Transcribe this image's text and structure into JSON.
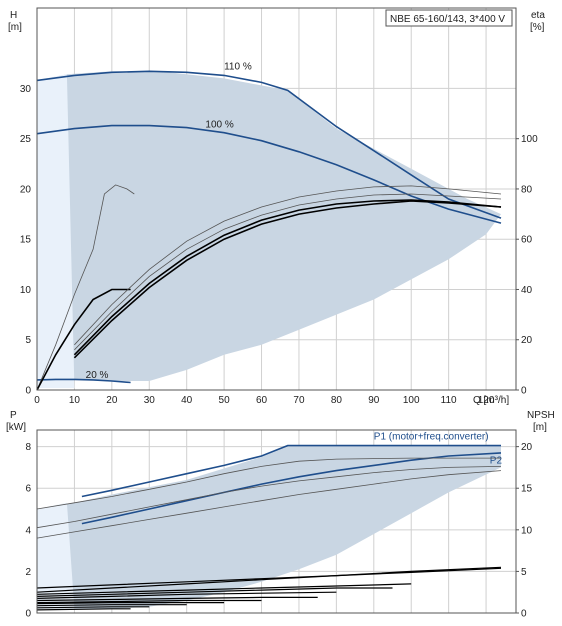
{
  "chart_data": [
    {
      "type": "line",
      "title": "NBE 65-160/143, 3*400 V",
      "xlabel": "Q [m³/h]",
      "ylabel_left_unit": "H",
      "ylabel_left_unit2": "[m]",
      "ylabel_right_unit": "eta",
      "ylabel_right_unit2": "[%]",
      "xlim": [
        0,
        128
      ],
      "ylim_left": [
        0,
        38
      ],
      "ylim_right": [
        0,
        152
      ],
      "x_ticks": [
        0,
        10,
        20,
        30,
        40,
        50,
        60,
        70,
        80,
        90,
        100,
        110,
        120
      ],
      "y_ticks_left": [
        0,
        5,
        10,
        15,
        20,
        25,
        30
      ],
      "y_ticks_right": [
        0,
        20,
        40,
        60,
        80,
        100
      ],
      "grid": true,
      "operating_area": [
        [
          0,
          30.8
        ],
        [
          8,
          31.4
        ],
        [
          20,
          31.7
        ],
        [
          35,
          31.6
        ],
        [
          50,
          31.0
        ],
        [
          67,
          29.8
        ],
        [
          80,
          26.0
        ],
        [
          100,
          22.0
        ],
        [
          115,
          19.0
        ],
        [
          124,
          17.5
        ],
        [
          120,
          15.5
        ],
        [
          110,
          13.0
        ],
        [
          100,
          11.0
        ],
        [
          90,
          9.0
        ],
        [
          80,
          7.5
        ],
        [
          70,
          6.0
        ],
        [
          60,
          4.5
        ],
        [
          50,
          3.5
        ],
        [
          40,
          2.0
        ],
        [
          30,
          0.9
        ],
        [
          20,
          0.9
        ],
        [
          10,
          1.0
        ],
        [
          0,
          0.3
        ]
      ],
      "series": [
        {
          "name": "110 %",
          "label_at": [
            50,
            31.9
          ],
          "values": [
            [
              0,
              30.8
            ],
            [
              10,
              31.3
            ],
            [
              20,
              31.6
            ],
            [
              30,
              31.7
            ],
            [
              40,
              31.6
            ],
            [
              50,
              31.3
            ],
            [
              60,
              30.6
            ],
            [
              67,
              29.8
            ],
            [
              80,
              26.2
            ],
            [
              90,
              23.8
            ],
            [
              100,
              21.4
            ],
            [
              110,
              19.0
            ],
            [
              124,
              17.1
            ]
          ]
        },
        {
          "name": "100 %",
          "label_at": [
            45,
            26.1
          ],
          "values": [
            [
              0,
              25.5
            ],
            [
              10,
              26.0
            ],
            [
              20,
              26.3
            ],
            [
              30,
              26.3
            ],
            [
              40,
              26.1
            ],
            [
              50,
              25.6
            ],
            [
              60,
              24.8
            ],
            [
              70,
              23.7
            ],
            [
              80,
              22.4
            ],
            [
              90,
              20.9
            ],
            [
              100,
              19.3
            ],
            [
              110,
              18.0
            ],
            [
              124,
              16.6
            ]
          ]
        },
        {
          "name": "20 %",
          "label_at": [
            13,
            1.2
          ],
          "values": [
            [
              0,
              1.0
            ],
            [
              5,
              1.05
            ],
            [
              10,
              1.05
            ],
            [
              15,
              1.0
            ],
            [
              20,
              0.9
            ],
            [
              25,
              0.75
            ]
          ]
        },
        {
          "name": "",
          "values": [
            [
              0,
              0
            ],
            [
              5,
              4.5
            ],
            [
              10,
              9.5
            ],
            [
              15,
              14.0
            ],
            [
              18,
              19.5
            ],
            [
              21,
              20.4
            ],
            [
              24,
              20.0
            ],
            [
              26,
              19.5
            ]
          ]
        },
        {
          "name": "",
          "values": [
            [
              0,
              0
            ],
            [
              5,
              3.5
            ],
            [
              10,
              6.5
            ],
            [
              15,
              9.0
            ],
            [
              20,
              10.0
            ],
            [
              25,
              10.0
            ]
          ]
        },
        {
          "name": "",
          "values": [
            [
              10,
              4.5
            ],
            [
              20,
              8.5
            ],
            [
              30,
              12.0
            ],
            [
              40,
              14.8
            ],
            [
              50,
              16.8
            ],
            [
              60,
              18.2
            ],
            [
              70,
              19.2
            ],
            [
              80,
              19.8
            ],
            [
              90,
              20.2
            ],
            [
              100,
              20.3
            ],
            [
              110,
              20.0
            ],
            [
              124,
              19.5
            ]
          ]
        },
        {
          "name": "",
          "values": [
            [
              10,
              4.0
            ],
            [
              20,
              7.8
            ],
            [
              30,
              11.3
            ],
            [
              40,
              14.0
            ],
            [
              50,
              16.0
            ],
            [
              60,
              17.4
            ],
            [
              70,
              18.4
            ],
            [
              80,
              19.0
            ],
            [
              90,
              19.4
            ],
            [
              100,
              19.5
            ],
            [
              110,
              19.3
            ],
            [
              124,
              19.0
            ]
          ]
        },
        {
          "name": "",
          "values": [
            [
              10,
              3.5
            ],
            [
              20,
              7.3
            ],
            [
              30,
              10.6
            ],
            [
              40,
              13.3
            ],
            [
              50,
              15.4
            ],
            [
              60,
              16.9
            ],
            [
              70,
              17.9
            ],
            [
              80,
              18.5
            ],
            [
              90,
              18.8
            ],
            [
              100,
              18.9
            ],
            [
              110,
              18.7
            ],
            [
              124,
              18.2
            ]
          ]
        },
        {
          "name": "",
          "values": [
            [
              10,
              3.2
            ],
            [
              20,
              6.9
            ],
            [
              30,
              10.2
            ],
            [
              40,
              12.9
            ],
            [
              50,
              15.0
            ],
            [
              60,
              16.5
            ],
            [
              70,
              17.5
            ],
            [
              80,
              18.1
            ],
            [
              90,
              18.5
            ],
            [
              100,
              18.8
            ],
            [
              110,
              18.6
            ],
            [
              124,
              18.2
            ]
          ]
        }
      ]
    },
    {
      "type": "line",
      "xlabel": "",
      "ylabel_left_unit": "P",
      "ylabel_left_unit2": "[kW]",
      "ylabel_right_unit": "NPSH",
      "ylabel_right_unit2": "[m]",
      "xlim": [
        0,
        128
      ],
      "ylim_left": [
        0,
        8.8
      ],
      "ylim_right": [
        0,
        22
      ],
      "y_ticks_left": [
        0,
        2,
        4,
        6,
        8
      ],
      "y_ticks_right": [
        0,
        5,
        10,
        15,
        20
      ],
      "grid": true,
      "operating_area": [
        [
          0,
          5.0
        ],
        [
          10,
          5.3
        ],
        [
          20,
          5.7
        ],
        [
          40,
          6.4
        ],
        [
          60,
          7.5
        ],
        [
          67,
          8.0
        ],
        [
          100,
          8.05
        ],
        [
          124,
          8.05
        ],
        [
          124,
          7.0
        ],
        [
          110,
          5.8
        ],
        [
          100,
          4.8
        ],
        [
          90,
          3.8
        ],
        [
          80,
          2.8
        ],
        [
          70,
          2.1
        ],
        [
          60,
          1.5
        ],
        [
          50,
          1.0
        ],
        [
          40,
          0.6
        ],
        [
          30,
          0.3
        ],
        [
          20,
          0.2
        ],
        [
          10,
          0.2
        ],
        [
          0,
          0.2
        ]
      ],
      "series": [
        {
          "name": "P1 (motor+freq.converter)",
          "label_at": [
            90,
            8.35
          ],
          "values": [
            [
              12,
              5.6
            ],
            [
              20,
              5.9
            ],
            [
              30,
              6.3
            ],
            [
              40,
              6.7
            ],
            [
              50,
              7.1
            ],
            [
              60,
              7.55
            ],
            [
              67,
              8.05
            ],
            [
              80,
              8.05
            ],
            [
              100,
              8.05
            ],
            [
              124,
              8.05
            ]
          ]
        },
        {
          "name": "P2",
          "label_at": [
            121,
            7.2
          ],
          "values": [
            [
              12,
              4.3
            ],
            [
              20,
              4.6
            ],
            [
              30,
              5.0
            ],
            [
              40,
              5.4
            ],
            [
              50,
              5.8
            ],
            [
              60,
              6.2
            ],
            [
              70,
              6.55
            ],
            [
              80,
              6.85
            ],
            [
              90,
              7.1
            ],
            [
              100,
              7.35
            ],
            [
              110,
              7.55
            ],
            [
              124,
              7.7
            ]
          ]
        },
        {
          "name": "",
          "values": [
            [
              0,
              5.0
            ],
            [
              10,
              5.3
            ],
            [
              20,
              5.6
            ],
            [
              30,
              5.95
            ],
            [
              40,
              6.3
            ],
            [
              50,
              6.7
            ],
            [
              60,
              7.05
            ],
            [
              70,
              7.3
            ],
            [
              80,
              7.4
            ],
            [
              100,
              7.45
            ],
            [
              124,
              7.45
            ]
          ]
        },
        {
          "name": "",
          "values": [
            [
              0,
              4.1
            ],
            [
              10,
              4.4
            ],
            [
              20,
              4.75
            ],
            [
              30,
              5.1
            ],
            [
              40,
              5.45
            ],
            [
              50,
              5.8
            ],
            [
              60,
              6.1
            ],
            [
              70,
              6.35
            ],
            [
              80,
              6.55
            ],
            [
              90,
              6.75
            ],
            [
              100,
              6.9
            ],
            [
              110,
              7.0
            ],
            [
              124,
              7.05
            ]
          ]
        },
        {
          "name": "",
          "values": [
            [
              0,
              3.6
            ],
            [
              10,
              3.9
            ],
            [
              20,
              4.2
            ],
            [
              30,
              4.5
            ],
            [
              40,
              4.8
            ],
            [
              50,
              5.1
            ],
            [
              60,
              5.4
            ],
            [
              70,
              5.7
            ],
            [
              80,
              5.95
            ],
            [
              90,
              6.2
            ],
            [
              100,
              6.45
            ],
            [
              110,
              6.65
            ],
            [
              124,
              6.85
            ]
          ]
        }
      ],
      "npsh_series": [
        {
          "values": [
            [
              0,
              1.2
            ],
            [
              20,
              1.35
            ],
            [
              40,
              1.5
            ],
            [
              60,
              1.65
            ],
            [
              80,
              1.8
            ],
            [
              100,
              1.95
            ],
            [
              124,
              2.15
            ]
          ]
        },
        {
          "values": [
            [
              0,
              1.0
            ],
            [
              20,
              1.2
            ],
            [
              40,
              1.4
            ],
            [
              60,
              1.6
            ],
            [
              80,
              1.8
            ],
            [
              100,
              2.0
            ],
            [
              124,
              2.2
            ]
          ]
        },
        {
          "values": [
            [
              0,
              0.9
            ],
            [
              20,
              1.0
            ],
            [
              40,
              1.1
            ],
            [
              60,
              1.2
            ],
            [
              80,
              1.3
            ],
            [
              100,
              1.4
            ]
          ]
        },
        {
          "values": [
            [
              0,
              0.8
            ],
            [
              20,
              0.9
            ],
            [
              40,
              1.0
            ],
            [
              60,
              1.1
            ],
            [
              80,
              1.2
            ],
            [
              95,
              1.2
            ]
          ]
        },
        {
          "values": [
            [
              0,
              0.7
            ],
            [
              20,
              0.8
            ],
            [
              40,
              0.9
            ],
            [
              60,
              0.95
            ],
            [
              80,
              1.0
            ]
          ]
        },
        {
          "values": [
            [
              0,
              0.6
            ],
            [
              20,
              0.65
            ],
            [
              40,
              0.7
            ],
            [
              60,
              0.75
            ],
            [
              75,
              0.75
            ]
          ]
        },
        {
          "values": [
            [
              0,
              0.5
            ],
            [
              20,
              0.55
            ],
            [
              40,
              0.6
            ],
            [
              60,
              0.6
            ]
          ]
        },
        {
          "values": [
            [
              0,
              0.45
            ],
            [
              20,
              0.5
            ],
            [
              40,
              0.5
            ],
            [
              50,
              0.5
            ]
          ]
        },
        {
          "values": [
            [
              0,
              0.35
            ],
            [
              20,
              0.4
            ],
            [
              40,
              0.4
            ]
          ]
        },
        {
          "values": [
            [
              0,
              0.25
            ],
            [
              20,
              0.3
            ],
            [
              30,
              0.3
            ]
          ]
        },
        {
          "values": [
            [
              0,
              0.15
            ],
            [
              20,
              0.2
            ],
            [
              25,
              0.2
            ]
          ]
        }
      ]
    }
  ],
  "colors": {
    "area": "#c9d6e3",
    "area_left_light": "#e9f1fa",
    "curve_dark": "#1f4e8c",
    "curve_black": "#000000",
    "curve_gray": "#555555",
    "grid": "#d0d0d0",
    "label_blue": "#1f4e8c"
  }
}
